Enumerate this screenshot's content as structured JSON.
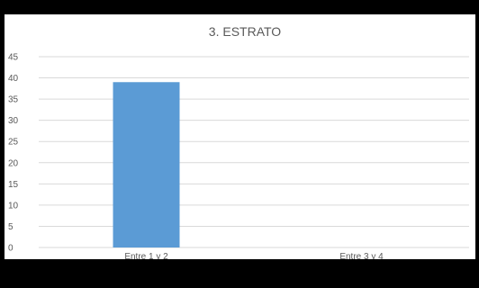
{
  "chart_data": {
    "type": "bar",
    "title": "3. ESTRATO",
    "categories": [
      "Entre 1 y 2",
      "Entre 3 y 4"
    ],
    "series": [
      {
        "values": [
          39,
          0
        ],
        "color": "#5b9bd5"
      }
    ],
    "ylim": [
      0,
      45
    ],
    "yticks": [
      0,
      5,
      10,
      15,
      20,
      25,
      30,
      35,
      40,
      45
    ],
    "grid": true,
    "legend": "none"
  },
  "colors": {
    "background": "#000000",
    "plot_background": "#ffffff",
    "gridline": "#d9d9d9",
    "text": "#595959",
    "bar": "#5b9bd5"
  }
}
